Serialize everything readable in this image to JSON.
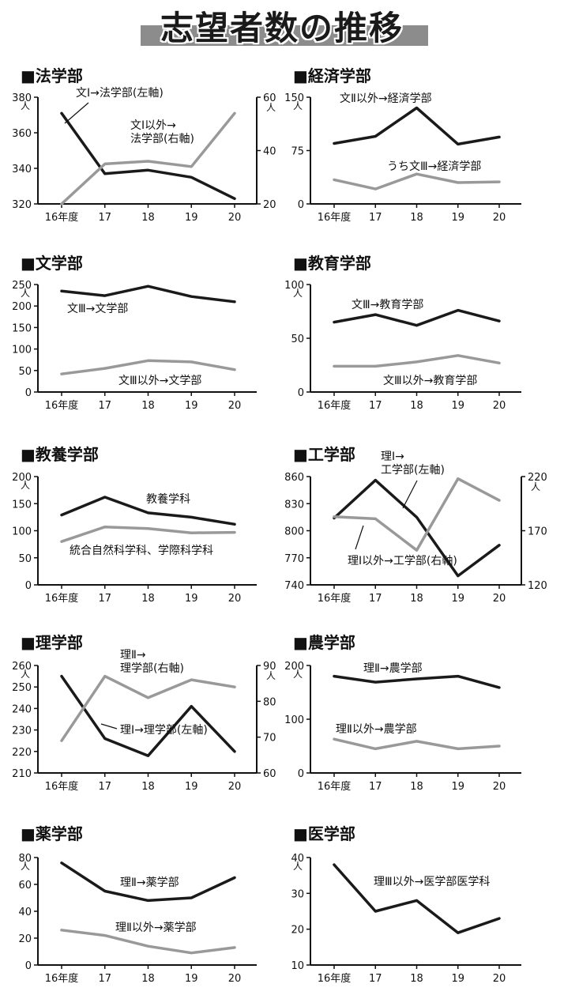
{
  "title": "志望者数の推移",
  "colors": {
    "black": "#1a1a1a",
    "gray": "#999999"
  },
  "chart_data": [
    {
      "type": "line",
      "title": "■法学部",
      "categories": [
        "16年度",
        "17",
        "18",
        "19",
        "20"
      ],
      "left_axis": {
        "ylim": [
          320,
          380
        ],
        "ticks": [
          "380",
          "360",
          "340",
          "320"
        ],
        "unit": "人"
      },
      "right_axis": {
        "ylim": [
          20,
          60
        ],
        "ticks": [
          "60",
          "40",
          "20"
        ],
        "unit": "人"
      },
      "series": [
        {
          "name": "文Ⅰ→法学部(左軸)",
          "color": "#1a1a1a",
          "axis": "left",
          "values": [
            371,
            337,
            339,
            335,
            323
          ]
        },
        {
          "name": "文Ⅰ以外→法学部(右軸)",
          "color": "#999999",
          "axis": "right",
          "values": [
            20,
            35,
            36,
            34,
            54
          ]
        }
      ]
    },
    {
      "type": "line",
      "title": "■経済学部",
      "categories": [
        "16年度",
        "17",
        "18",
        "19",
        "20"
      ],
      "left_axis": {
        "ylim": [
          0,
          150
        ],
        "ticks": [
          "150",
          "75",
          "0"
        ],
        "unit": "人"
      },
      "series": [
        {
          "name": "文Ⅱ以外→経済学部",
          "color": "#1a1a1a",
          "axis": "left",
          "values": [
            85,
            95,
            135,
            84,
            94
          ]
        },
        {
          "name": "うち文Ⅲ→経済学部",
          "color": "#999999",
          "axis": "left",
          "values": [
            34,
            21,
            42,
            30,
            31
          ]
        }
      ]
    },
    {
      "type": "line",
      "title": "■文学部",
      "categories": [
        "16年度",
        "17",
        "18",
        "19",
        "20"
      ],
      "left_axis": {
        "ylim": [
          0,
          250
        ],
        "ticks": [
          "250",
          "200",
          "150",
          "100",
          "50",
          "0"
        ],
        "unit": "人"
      },
      "series": [
        {
          "name": "文Ⅲ→文学部",
          "color": "#1a1a1a",
          "axis": "left",
          "values": [
            235,
            224,
            246,
            222,
            210
          ]
        },
        {
          "name": "文Ⅲ以外→文学部",
          "color": "#999999",
          "axis": "left",
          "values": [
            42,
            55,
            73,
            70,
            52
          ]
        }
      ]
    },
    {
      "type": "line",
      "title": "■教育学部",
      "categories": [
        "16年度",
        "17",
        "18",
        "19",
        "20"
      ],
      "left_axis": {
        "ylim": [
          0,
          100
        ],
        "ticks": [
          "100",
          "50",
          "0"
        ],
        "unit": "人"
      },
      "series": [
        {
          "name": "文Ⅲ→教育学部",
          "color": "#1a1a1a",
          "axis": "left",
          "values": [
            65,
            72,
            62,
            76,
            66
          ]
        },
        {
          "name": "文Ⅲ以外→教育学部",
          "color": "#999999",
          "axis": "left",
          "values": [
            24,
            24,
            28,
            34,
            27
          ]
        }
      ]
    },
    {
      "type": "line",
      "title": "■教養学部",
      "categories": [
        "16年度",
        "17",
        "18",
        "19",
        "20"
      ],
      "left_axis": {
        "ylim": [
          0,
          200
        ],
        "ticks": [
          "200",
          "150",
          "100",
          "50",
          "0"
        ],
        "unit": "人"
      },
      "series": [
        {
          "name": "教養学科",
          "color": "#1a1a1a",
          "axis": "left",
          "values": [
            129,
            162,
            133,
            125,
            112
          ]
        },
        {
          "name": "統合自然科学科、学際科学科",
          "color": "#999999",
          "axis": "left",
          "values": [
            80,
            107,
            104,
            96,
            97
          ]
        }
      ]
    },
    {
      "type": "line",
      "title": "■工学部",
      "categories": [
        "16年度",
        "17",
        "18",
        "19",
        "20"
      ],
      "left_axis": {
        "ylim": [
          740,
          860
        ],
        "ticks": [
          "860",
          "830",
          "800",
          "770",
          "740"
        ],
        "unit": ""
      },
      "right_axis": {
        "ylim": [
          120,
          220
        ],
        "ticks": [
          "220",
          "170",
          "120"
        ],
        "unit": "人"
      },
      "series": [
        {
          "name": "理Ⅰ→工学部(左軸)",
          "color": "#1a1a1a",
          "axis": "left",
          "values": [
            814,
            856,
            815,
            750,
            784
          ]
        },
        {
          "name": "理Ⅰ以外→工学部(右軸)",
          "color": "#999999",
          "axis": "right",
          "values": [
            183,
            181,
            152,
            218,
            198
          ]
        }
      ]
    },
    {
      "type": "line",
      "title": "■理学部",
      "categories": [
        "16年度",
        "17",
        "18",
        "19",
        "20"
      ],
      "left_axis": {
        "ylim": [
          210,
          260
        ],
        "ticks": [
          "260",
          "250",
          "240",
          "230",
          "220",
          "210"
        ],
        "unit": "人"
      },
      "right_axis": {
        "ylim": [
          60,
          90
        ],
        "ticks": [
          "90",
          "80",
          "70",
          "60"
        ],
        "unit": "人"
      },
      "series": [
        {
          "name": "理Ⅰ→理学部(左軸)",
          "color": "#1a1a1a",
          "axis": "left",
          "values": [
            255,
            226,
            218,
            241,
            220
          ]
        },
        {
          "name": "理Ⅱ→理学部(右軸)",
          "color": "#999999",
          "axis": "right",
          "values": [
            69,
            87,
            81,
            86,
            84
          ]
        }
      ]
    },
    {
      "type": "line",
      "title": "■農学部",
      "categories": [
        "16年度",
        "17",
        "18",
        "19",
        "20"
      ],
      "left_axis": {
        "ylim": [
          0,
          200
        ],
        "ticks": [
          "200",
          "100",
          "0"
        ],
        "unit": "人"
      },
      "series": [
        {
          "name": "理Ⅱ→農学部",
          "color": "#1a1a1a",
          "axis": "left",
          "values": [
            180,
            169,
            175,
            180,
            159
          ]
        },
        {
          "name": "理Ⅱ以外→農学部",
          "color": "#999999",
          "axis": "left",
          "values": [
            63,
            45,
            59,
            45,
            50
          ]
        }
      ]
    },
    {
      "type": "line",
      "title": "■薬学部",
      "categories": [
        "16年度",
        "17",
        "18",
        "19",
        "20"
      ],
      "left_axis": {
        "ylim": [
          0,
          80
        ],
        "ticks": [
          "80",
          "60",
          "40",
          "20",
          "0"
        ],
        "unit": "人"
      },
      "series": [
        {
          "name": "理Ⅱ→薬学部",
          "color": "#1a1a1a",
          "axis": "left",
          "values": [
            76,
            55,
            48,
            50,
            65
          ]
        },
        {
          "name": "理Ⅱ以外→薬学部",
          "color": "#999999",
          "axis": "left",
          "values": [
            26,
            22,
            14,
            9,
            13
          ]
        }
      ]
    },
    {
      "type": "line",
      "title": "■医学部",
      "categories": [
        "16年度",
        "17",
        "18",
        "19",
        "20"
      ],
      "left_axis": {
        "ylim": [
          10,
          40
        ],
        "ticks": [
          "40",
          "30",
          "20",
          "10"
        ],
        "unit": "人"
      },
      "series": [
        {
          "name": "理Ⅲ以外→医学部医学科",
          "color": "#1a1a1a",
          "axis": "left",
          "values": [
            38,
            25,
            28,
            19,
            23
          ]
        }
      ]
    }
  ]
}
